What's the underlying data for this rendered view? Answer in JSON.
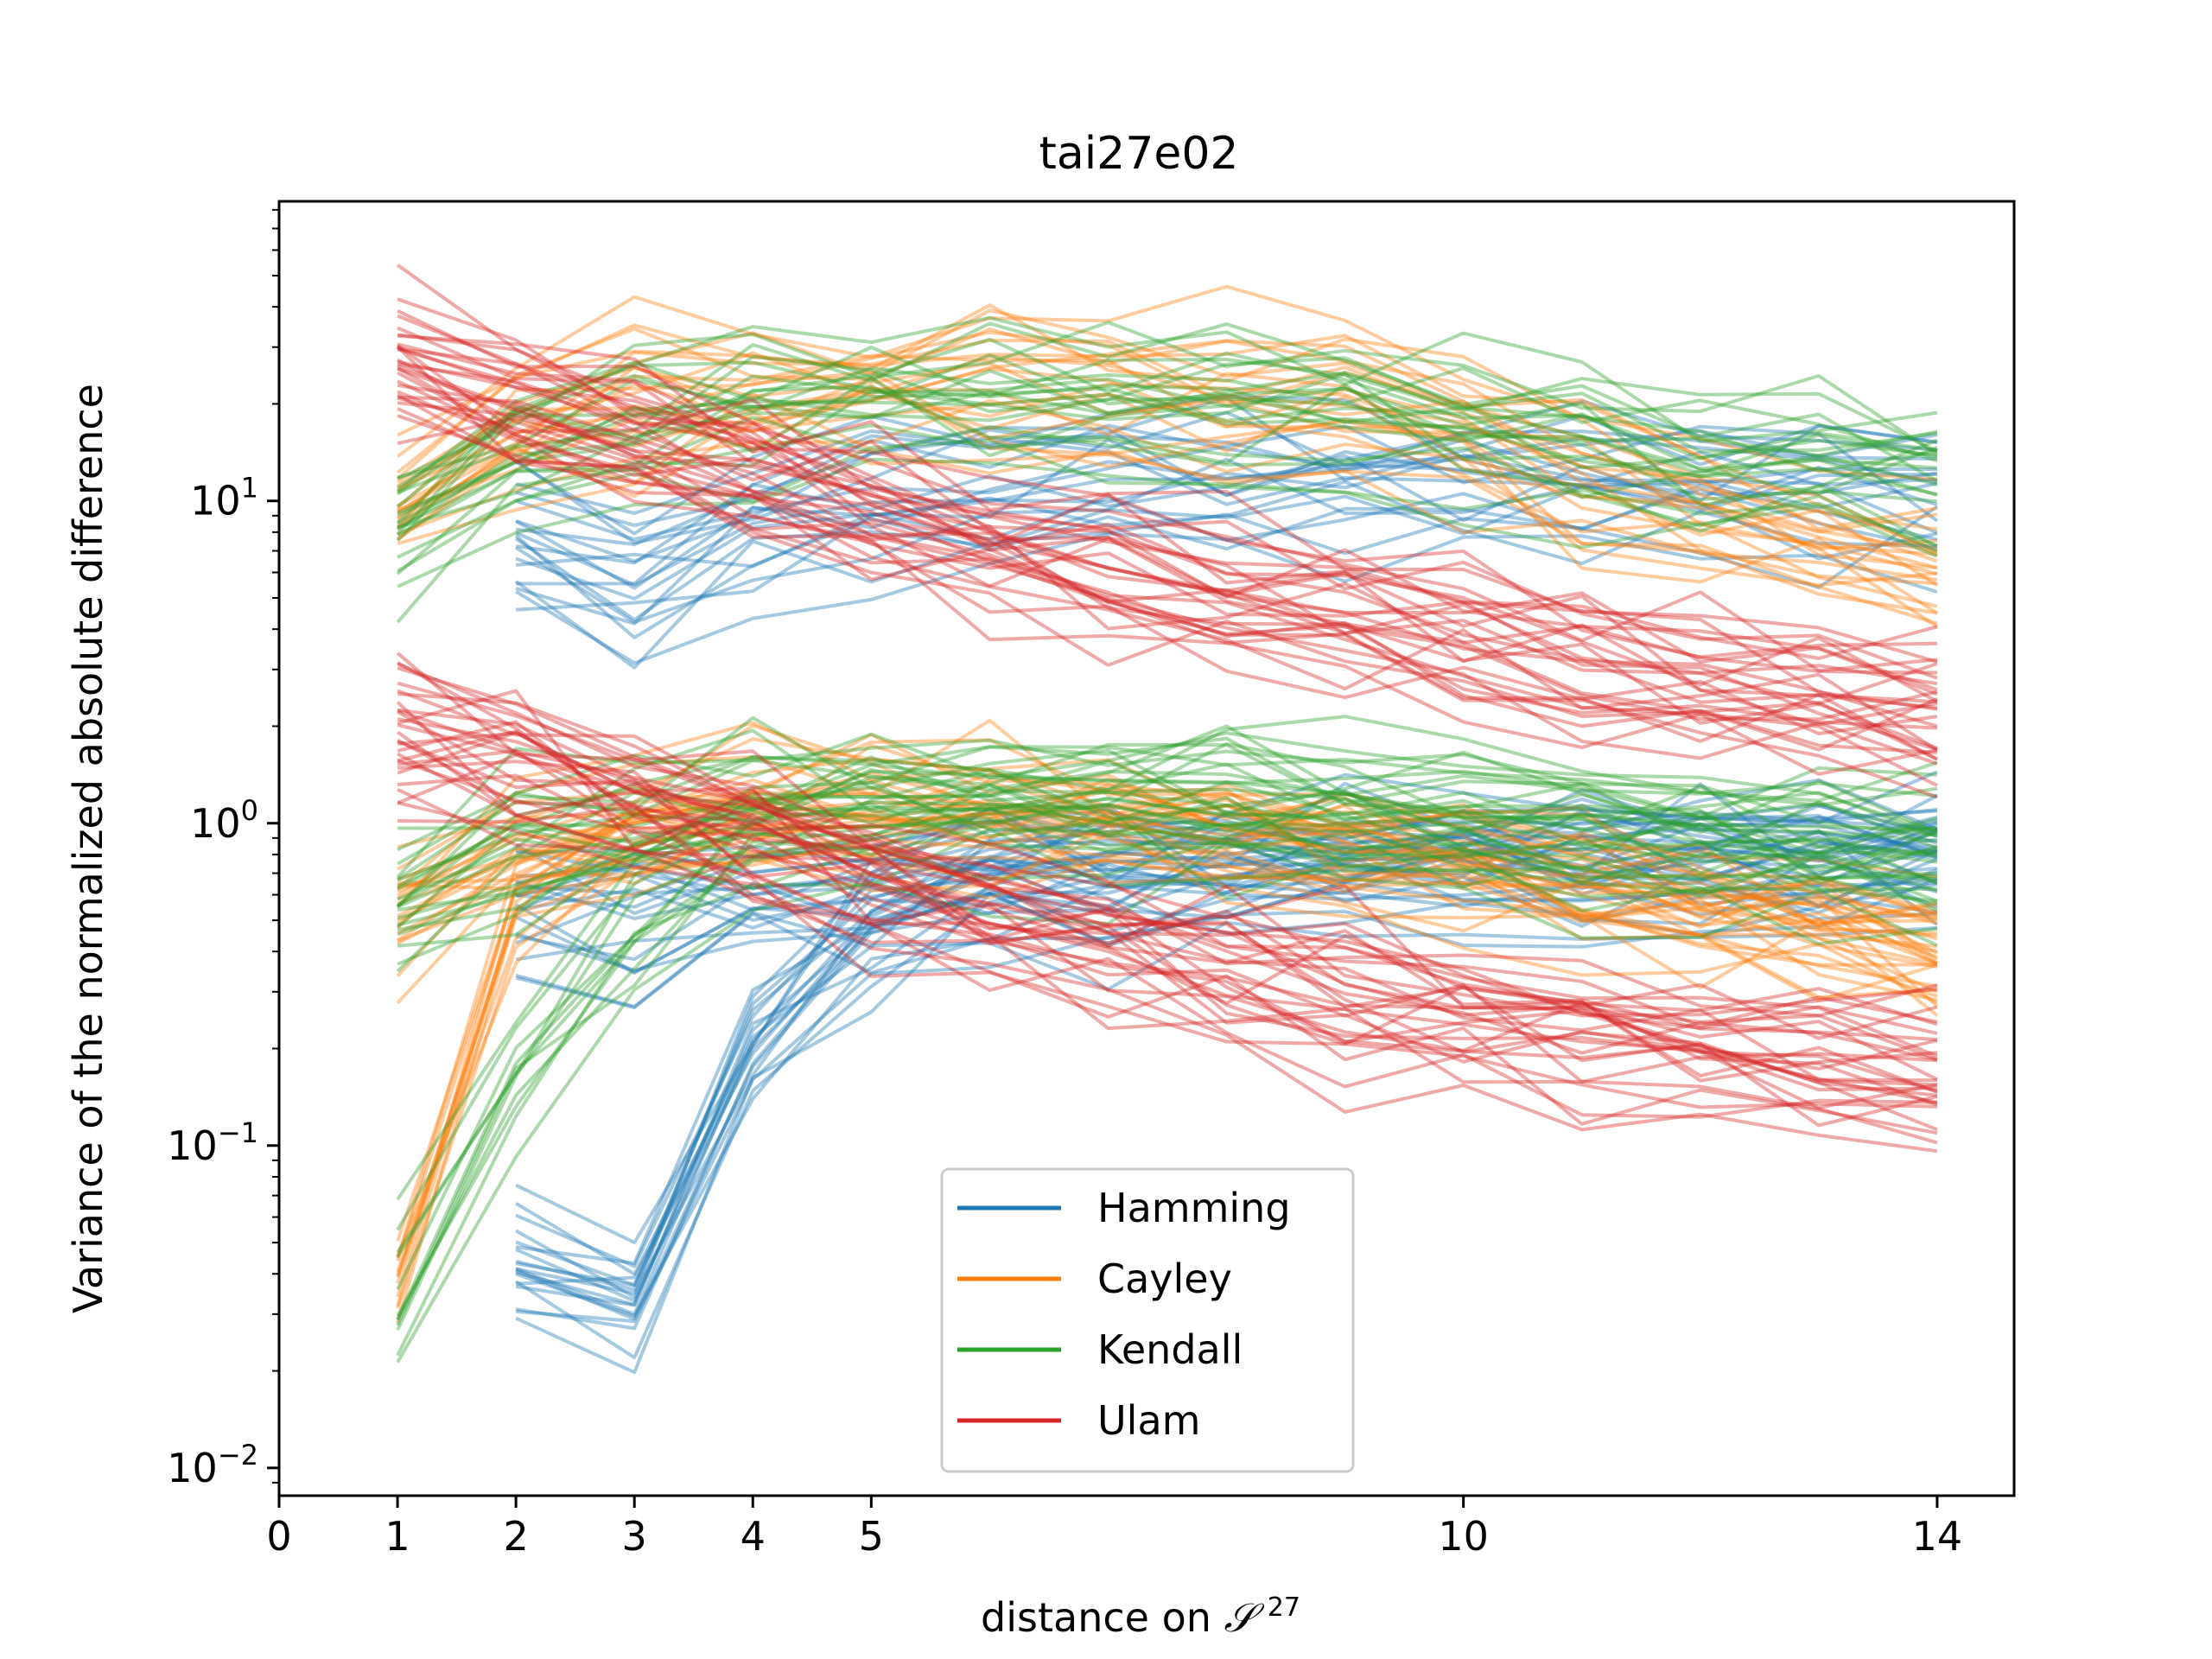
{
  "chart_data": {
    "type": "line",
    "title": "tai27e02",
    "xlabel": "distance on",
    "xlabel_math": "𝒮",
    "xlabel_sup": "27",
    "ylabel": "Variance of the normalized absolute difference",
    "y_scale": "log",
    "xlim": [
      0,
      14.65
    ],
    "ylim": [
      0.0082,
      85
    ],
    "x_ticks": [
      {
        "value": 0,
        "label": "0"
      },
      {
        "value": 1,
        "label": "1"
      },
      {
        "value": 2,
        "label": "2"
      },
      {
        "value": 3,
        "label": "3"
      },
      {
        "value": 4,
        "label": "4"
      },
      {
        "value": 5,
        "label": "5"
      },
      {
        "value": 10,
        "label": "10"
      },
      {
        "value": 14,
        "label": "14"
      }
    ],
    "y_ticks": [
      {
        "value": 0.01,
        "base": "10",
        "exp": "−2"
      },
      {
        "value": 0.1,
        "base": "10",
        "exp": "−1"
      },
      {
        "value": 1,
        "base": "10",
        "exp": "0"
      },
      {
        "value": 10,
        "base": "10",
        "exp": "1"
      }
    ],
    "grid": false,
    "legend_position": "bottom-center",
    "x": [
      1,
      2,
      3,
      4,
      5,
      6,
      7,
      8,
      9,
      10,
      11,
      12,
      13,
      14
    ],
    "series": [
      {
        "name": "Hamming",
        "color": "#1f77b4",
        "start": 2,
        "groups": [
          {
            "values": [
              null,
              7.5,
              5.6,
              8.5,
              10,
              11,
              12,
              12,
              12,
              11.5,
              11.5,
              11.5,
              11.5,
              11.5
            ],
            "count": 20
          },
          {
            "values": [
              null,
              0.55,
              0.52,
              0.62,
              0.66,
              0.7,
              0.73,
              0.75,
              0.76,
              0.76,
              0.76,
              0.76,
              0.76,
              0.76
            ],
            "count": 20
          },
          {
            "values": [
              null,
              0.04,
              0.03,
              0.18,
              0.42,
              0.6,
              0.68,
              0.72,
              0.74,
              0.75,
              0.75,
              0.75,
              0.75,
              0.75
            ],
            "count": 20
          }
        ]
      },
      {
        "name": "Cayley",
        "color": "#ff7f0e",
        "start": 1,
        "groups": [
          {
            "values": [
              9.5,
              16,
              20,
              22,
              22,
              22,
              21,
              20,
              19,
              16,
              12,
              9,
              7,
              6
            ],
            "count": 22
          },
          {
            "values": [
              0.55,
              0.9,
              1.05,
              1.15,
              1.2,
              1.15,
              1.1,
              1.0,
              0.92,
              0.82,
              0.7,
              0.6,
              0.52,
              0.45
            ],
            "count": 22
          },
          {
            "values": [
              0.04,
              0.6,
              1.0,
              1.1,
              1.15,
              1.1,
              1.05,
              1.0,
              0.92,
              0.82,
              0.7,
              0.6,
              0.52,
              0.45
            ],
            "count": 12
          }
        ]
      },
      {
        "name": "Kendall",
        "color": "#2ca02c",
        "start": 1,
        "groups": [
          {
            "values": [
              9,
              15,
              19,
              21,
              23,
              23,
              23,
              22,
              21,
              19,
              17,
              15,
              14,
              13
            ],
            "count": 22
          },
          {
            "values": [
              0.55,
              0.9,
              1.1,
              1.2,
              1.25,
              1.25,
              1.25,
              1.2,
              1.15,
              1.1,
              1.0,
              0.95,
              0.9,
              0.85
            ],
            "count": 22
          },
          {
            "values": [
              0.04,
              0.2,
              0.5,
              0.9,
              1.1,
              1.2,
              1.2,
              1.2,
              1.15,
              1.1,
              1.0,
              0.95,
              0.9,
              0.85
            ],
            "count": 12
          }
        ]
      },
      {
        "name": "Ulam",
        "color": "#d62728",
        "start": 1,
        "groups": [
          {
            "values": [
              30,
              22,
              17,
              13,
              10,
              8,
              6.5,
              5.5,
              4.8,
              4,
              3.4,
              3,
              2.7,
              2.4
            ],
            "count": 30
          },
          {
            "values": [
              1.8,
              1.5,
              1.15,
              0.85,
              0.65,
              0.5,
              0.4,
              0.33,
              0.28,
              0.24,
              0.21,
              0.19,
              0.17,
              0.16
            ],
            "count": 30
          }
        ]
      }
    ]
  }
}
